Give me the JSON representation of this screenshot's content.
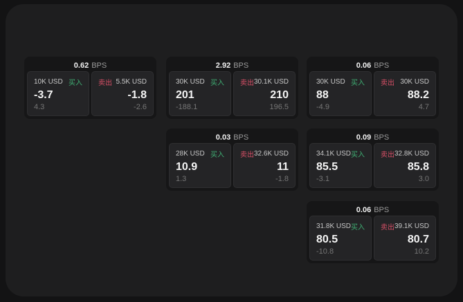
{
  "labels": {
    "bps": "BPS",
    "buy": "买入",
    "sell": "卖出"
  },
  "colors": {
    "backdrop": "#131314",
    "page_bg": "#1e1e1f",
    "card_bg": "#161617",
    "panel_bg": "#242426",
    "buy_green": "#3fae73",
    "sell_red": "#d64f66",
    "price_white": "#f5f5f5",
    "dim_gray": "#767676"
  },
  "cards": [
    {
      "spread": "0.62",
      "buy": {
        "amount": "10K USD",
        "price": "-3.7",
        "sub": "4.3"
      },
      "sell": {
        "amount": "5.5K USD",
        "price": "-1.8",
        "sub": "-2.6"
      }
    },
    {
      "spread": "2.92",
      "buy": {
        "amount": "30K USD",
        "price": "201",
        "sub": "-188.1"
      },
      "sell": {
        "amount": "30.1K USD",
        "price": "210",
        "sub": "196.5"
      }
    },
    {
      "spread": "0.06",
      "buy": {
        "amount": "30K USD",
        "price": "88",
        "sub": "-4.9"
      },
      "sell": {
        "amount": "30K USD",
        "price": "88.2",
        "sub": "4.7"
      }
    },
    {
      "spread": "0.03",
      "buy": {
        "amount": "28K USD",
        "price": "10.9",
        "sub": "1.3"
      },
      "sell": {
        "amount": "32.6K USD",
        "price": "11",
        "sub": "-1.8"
      }
    },
    {
      "spread": "0.09",
      "buy": {
        "amount": "34.1K USD",
        "price": "85.5",
        "sub": "-3.1"
      },
      "sell": {
        "amount": "32.8K USD",
        "price": "85.8",
        "sub": "3.0"
      }
    },
    {
      "spread": "0.06",
      "buy": {
        "amount": "31.8K USD",
        "price": "80.5",
        "sub": "-10.8"
      },
      "sell": {
        "amount": "39.1K USD",
        "price": "80.7",
        "sub": "10.2"
      }
    }
  ]
}
